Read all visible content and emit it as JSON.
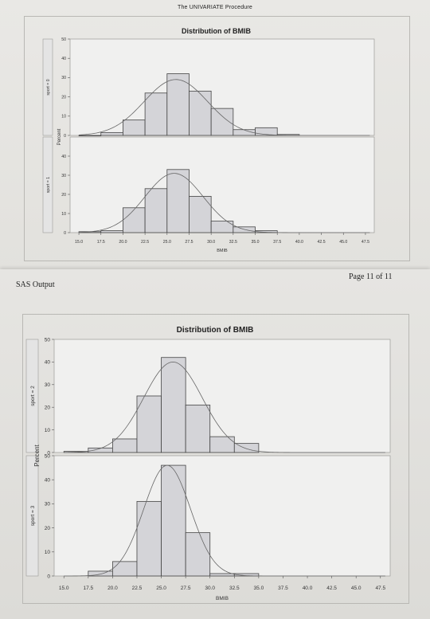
{
  "page": {
    "procedure_title": "The UNIVARIATE Procedure",
    "sas_output_label": "SAS Output",
    "page_number": "Page 11 of 11"
  },
  "chart_data": [
    {
      "type": "bar",
      "title": "Distribution of BMIB",
      "xlabel": "BMIB",
      "ylabel": "Percent",
      "x_ticks": [
        "15.0",
        "17.5",
        "20.0",
        "22.5",
        "25.0",
        "27.5",
        "30.0",
        "32.5",
        "35.0",
        "37.5",
        "40.0",
        "42.5",
        "45.0",
        "47.5"
      ],
      "xlim": [
        14.0,
        48.5
      ],
      "bin_width": 2.5,
      "panels": [
        {
          "label": "sport = 0",
          "ylim": [
            0,
            50
          ],
          "y_ticks": [
            0,
            10,
            20,
            30,
            40,
            50
          ],
          "bins": [
            {
              "mid": 16.25,
              "value": 0
            },
            {
              "mid": 18.75,
              "value": 1.5
            },
            {
              "mid": 21.25,
              "value": 8
            },
            {
              "mid": 23.75,
              "value": 22
            },
            {
              "mid": 26.25,
              "value": 32
            },
            {
              "mid": 28.75,
              "value": 23
            },
            {
              "mid": 31.25,
              "value": 14
            },
            {
              "mid": 33.75,
              "value": 3
            },
            {
              "mid": 36.25,
              "value": 4
            },
            {
              "mid": 38.75,
              "value": 0.5
            }
          ],
          "curve_mean": 26.0,
          "curve_sd": 3.6,
          "curve_peak": 29
        },
        {
          "label": "sport = 1",
          "ylim": [
            0,
            50
          ],
          "y_ticks": [
            0,
            10,
            20,
            30,
            40
          ],
          "bins": [
            {
              "mid": 16.25,
              "value": 0.5
            },
            {
              "mid": 18.75,
              "value": 1
            },
            {
              "mid": 21.25,
              "value": 13
            },
            {
              "mid": 23.75,
              "value": 23
            },
            {
              "mid": 26.25,
              "value": 33
            },
            {
              "mid": 28.75,
              "value": 19
            },
            {
              "mid": 31.25,
              "value": 6
            },
            {
              "mid": 33.75,
              "value": 3
            },
            {
              "mid": 36.25,
              "value": 1
            }
          ],
          "curve_mean": 25.8,
          "curve_sd": 3.3,
          "curve_peak": 31
        }
      ]
    },
    {
      "type": "bar",
      "title": "Distribution of BMIB",
      "xlabel": "BMIB",
      "ylabel": "Percent",
      "x_ticks": [
        "15.0",
        "17.5",
        "20.0",
        "22.5",
        "25.0",
        "27.5",
        "30.0",
        "32.5",
        "35.0",
        "37.5",
        "40.0",
        "42.5",
        "45.0",
        "47.5"
      ],
      "xlim": [
        14.0,
        48.5
      ],
      "bin_width": 2.5,
      "panels": [
        {
          "label": "sport = 2",
          "ylim": [
            0,
            50
          ],
          "y_ticks": [
            0,
            10,
            20,
            30,
            40,
            50
          ],
          "bins": [
            {
              "mid": 16.25,
              "value": 0.5
            },
            {
              "mid": 18.75,
              "value": 2
            },
            {
              "mid": 21.25,
              "value": 6
            },
            {
              "mid": 23.75,
              "value": 25
            },
            {
              "mid": 26.25,
              "value": 42
            },
            {
              "mid": 28.75,
              "value": 21
            },
            {
              "mid": 31.25,
              "value": 7
            },
            {
              "mid": 33.75,
              "value": 4
            }
          ],
          "curve_mean": 26.2,
          "curve_sd": 3.0,
          "curve_peak": 40
        },
        {
          "label": "sport = 3",
          "ylim": [
            0,
            50
          ],
          "y_ticks": [
            0,
            10,
            20,
            30,
            40,
            50
          ],
          "bins": [
            {
              "mid": 18.75,
              "value": 2
            },
            {
              "mid": 21.25,
              "value": 6
            },
            {
              "mid": 23.75,
              "value": 31
            },
            {
              "mid": 26.25,
              "value": 46
            },
            {
              "mid": 28.75,
              "value": 18
            },
            {
              "mid": 31.25,
              "value": 1
            },
            {
              "mid": 33.75,
              "value": 1
            }
          ],
          "curve_mean": 25.6,
          "curve_sd": 2.4,
          "curve_peak": 46
        }
      ]
    }
  ]
}
